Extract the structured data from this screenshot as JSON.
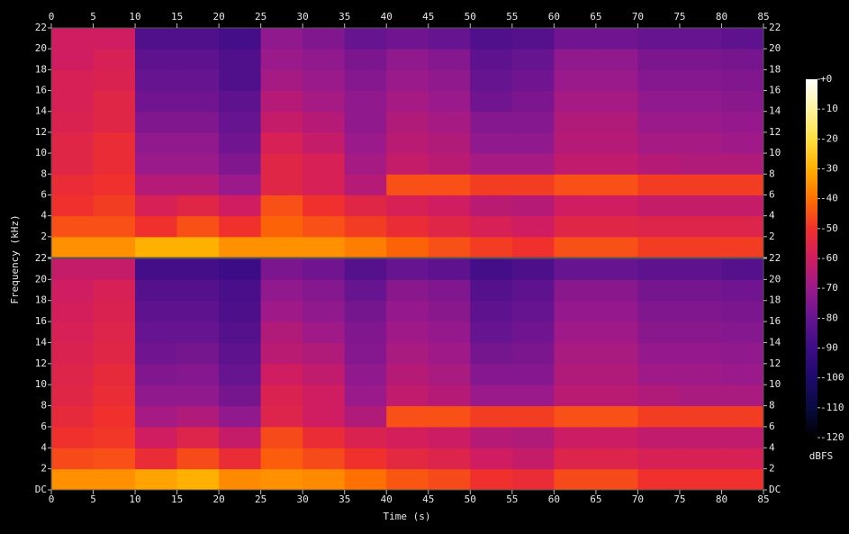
{
  "chart_data": {
    "type": "heatmap",
    "xlabel": "Time (s)",
    "ylabel": "Frequency (kHz)",
    "colorbar_label": "dBFS",
    "xlim": [
      0,
      85
    ],
    "xticks": [
      0,
      5,
      10,
      15,
      20,
      25,
      30,
      35,
      40,
      45,
      50,
      55,
      60,
      65,
      70,
      75,
      80,
      85
    ],
    "ylim": [
      0,
      22
    ],
    "yticks": [
      {
        "value": 0,
        "label": "DC"
      },
      2,
      4,
      6,
      8,
      10,
      12,
      14,
      16,
      18,
      20,
      22
    ],
    "clim": [
      -120,
      0
    ],
    "cticks": [
      {
        "value": 0,
        "label": "+0"
      },
      -10,
      -20,
      -30,
      -40,
      -50,
      -60,
      -70,
      -80,
      -90,
      -100,
      -110,
      -120
    ],
    "colormap": [
      "#000000",
      "#0a0a40",
      "#1e0a6a",
      "#3c0c86",
      "#661490",
      "#9a1a8c",
      "#d01c60",
      "#f0302c",
      "#ff7000",
      "#ffb000",
      "#ffe040",
      "#fff4a0",
      "#ffffff"
    ],
    "x_bins": [
      0,
      5,
      10,
      15,
      20,
      25,
      30,
      35,
      40,
      45,
      50,
      55,
      60,
      65,
      70,
      75,
      80,
      85
    ],
    "y_bins": [
      0,
      2,
      4,
      6,
      8,
      10,
      12,
      14,
      16,
      18,
      20,
      22
    ],
    "channels": [
      {
        "values": [
          [
            -35,
            -45,
            -50,
            -52,
            -55,
            -55,
            -57,
            -58,
            -58,
            -60,
            -60
          ],
          [
            -35,
            -45,
            -48,
            -50,
            -52,
            -52,
            -55,
            -55,
            -57,
            -58,
            -60
          ],
          [
            -30,
            -50,
            -58,
            -65,
            -70,
            -72,
            -75,
            -78,
            -80,
            -82,
            -85
          ],
          [
            -30,
            -45,
            -55,
            -65,
            -70,
            -72,
            -75,
            -78,
            -80,
            -82,
            -85
          ],
          [
            -35,
            -50,
            -60,
            -70,
            -75,
            -78,
            -80,
            -82,
            -85,
            -85,
            -88
          ],
          [
            -35,
            -42,
            -45,
            -55,
            -55,
            -58,
            -62,
            -65,
            -68,
            -70,
            -72
          ],
          [
            -35,
            -45,
            -50,
            -58,
            -58,
            -62,
            -65,
            -68,
            -70,
            -72,
            -75
          ],
          [
            -38,
            -48,
            -55,
            -65,
            -68,
            -70,
            -72,
            -72,
            -74,
            -76,
            -80
          ],
          [
            -42,
            -52,
            -58,
            -45,
            -62,
            -64,
            -66,
            -68,
            -70,
            -72,
            -78
          ],
          [
            -45,
            -55,
            -60,
            -45,
            -64,
            -66,
            -68,
            -70,
            -72,
            -74,
            -80
          ],
          [
            -48,
            -58,
            -64,
            -48,
            -68,
            -72,
            -74,
            -78,
            -80,
            -82,
            -85
          ],
          [
            -50,
            -60,
            -65,
            -48,
            -68,
            -72,
            -74,
            -76,
            -78,
            -80,
            -84
          ],
          [
            -45,
            -55,
            -60,
            -45,
            -63,
            -65,
            -66,
            -68,
            -70,
            -72,
            -78
          ],
          [
            -45,
            -55,
            -60,
            -45,
            -63,
            -65,
            -66,
            -68,
            -70,
            -72,
            -78
          ],
          [
            -48,
            -56,
            -62,
            -48,
            -65,
            -68,
            -70,
            -72,
            -74,
            -76,
            -80
          ],
          [
            -48,
            -56,
            -62,
            -48,
            -66,
            -68,
            -70,
            -72,
            -74,
            -76,
            -80
          ],
          [
            -48,
            -56,
            -62,
            -48,
            -66,
            -69,
            -71,
            -73,
            -75,
            -77,
            -82
          ]
        ]
      },
      {
        "values": [
          [
            -35,
            -46,
            -50,
            -53,
            -55,
            -56,
            -57,
            -58,
            -59,
            -60,
            -62
          ],
          [
            -35,
            -45,
            -49,
            -50,
            -52,
            -53,
            -55,
            -56,
            -57,
            -58,
            -62
          ],
          [
            -32,
            -52,
            -60,
            -68,
            -72,
            -75,
            -78,
            -80,
            -82,
            -84,
            -88
          ],
          [
            -30,
            -46,
            -56,
            -66,
            -72,
            -74,
            -77,
            -80,
            -82,
            -84,
            -88
          ],
          [
            -36,
            -52,
            -62,
            -72,
            -77,
            -80,
            -82,
            -84,
            -86,
            -87,
            -90
          ],
          [
            -35,
            -43,
            -46,
            -56,
            -57,
            -60,
            -64,
            -66,
            -69,
            -72,
            -76
          ],
          [
            -36,
            -46,
            -52,
            -60,
            -60,
            -63,
            -66,
            -69,
            -72,
            -74,
            -78
          ],
          [
            -40,
            -50,
            -57,
            -66,
            -70,
            -72,
            -74,
            -75,
            -77,
            -80,
            -84
          ],
          [
            -44,
            -54,
            -59,
            -45,
            -63,
            -65,
            -67,
            -69,
            -71,
            -73,
            -80
          ],
          [
            -46,
            -56,
            -61,
            -45,
            -65,
            -67,
            -69,
            -71,
            -73,
            -75,
            -82
          ],
          [
            -50,
            -60,
            -65,
            -48,
            -70,
            -74,
            -77,
            -80,
            -82,
            -84,
            -88
          ],
          [
            -52,
            -62,
            -66,
            -48,
            -70,
            -74,
            -76,
            -78,
            -80,
            -82,
            -86
          ],
          [
            -46,
            -56,
            -61,
            -45,
            -64,
            -66,
            -67,
            -69,
            -71,
            -73,
            -80
          ],
          [
            -46,
            -56,
            -61,
            -45,
            -64,
            -66,
            -67,
            -69,
            -71,
            -73,
            -80
          ],
          [
            -50,
            -58,
            -63,
            -48,
            -66,
            -69,
            -71,
            -73,
            -75,
            -77,
            -82
          ],
          [
            -50,
            -58,
            -63,
            -48,
            -67,
            -69,
            -71,
            -73,
            -75,
            -77,
            -82
          ],
          [
            -50,
            -58,
            -63,
            -48,
            -67,
            -70,
            -72,
            -74,
            -76,
            -78,
            -84
          ]
        ]
      }
    ]
  }
}
